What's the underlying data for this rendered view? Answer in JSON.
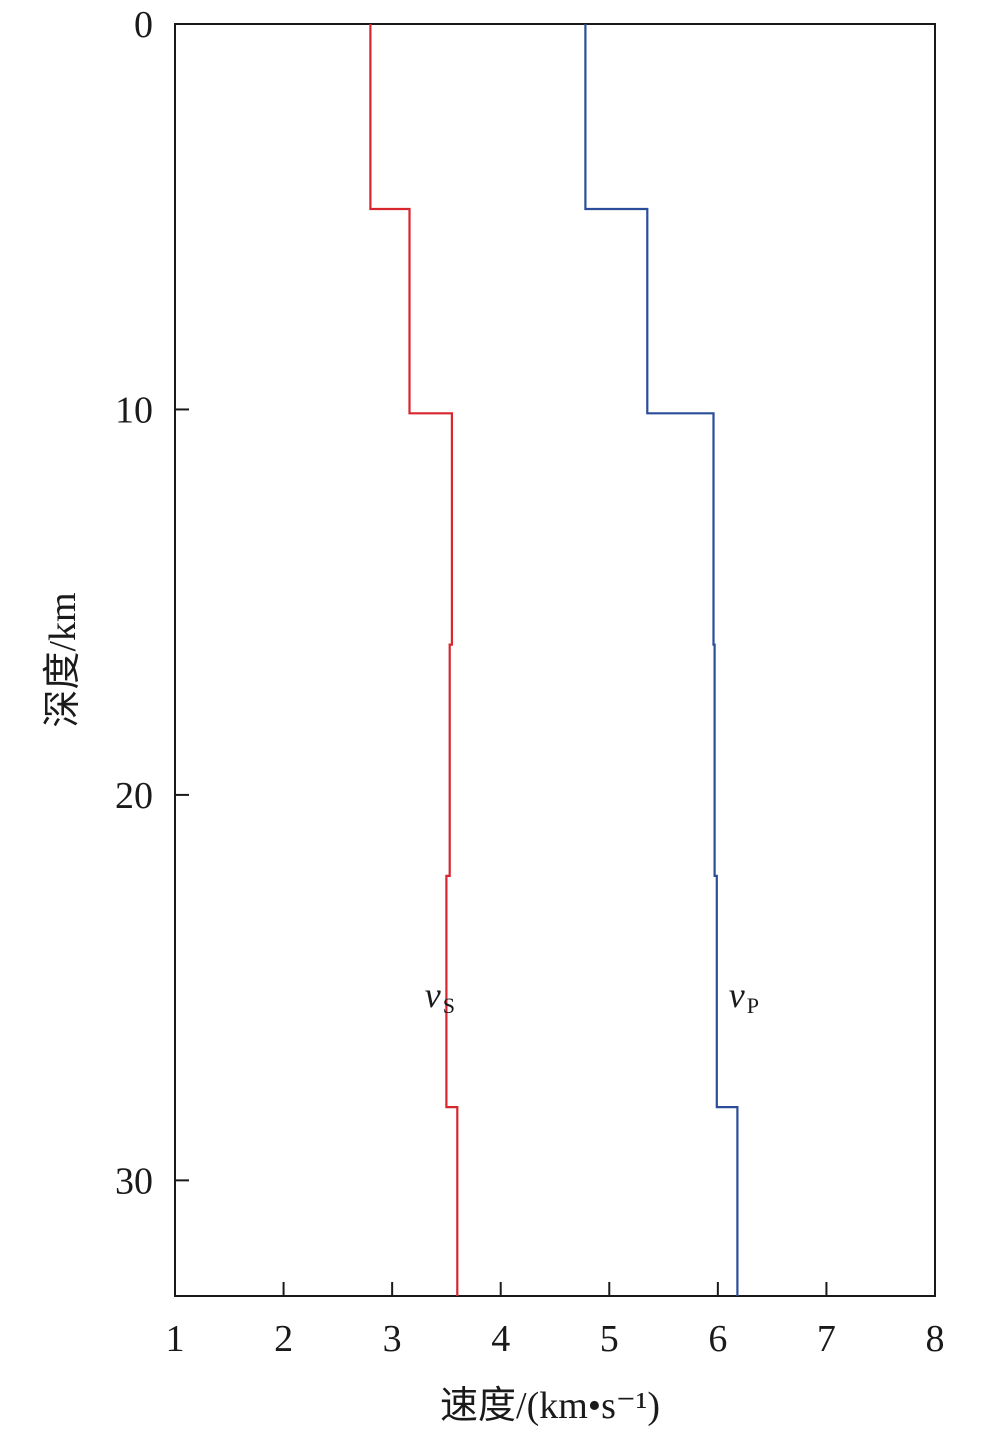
{
  "chart_data": {
    "type": "line",
    "orientation": "depth-profile",
    "xlabel": "速度/(km•s⁻¹)",
    "ylabel": "深度/km",
    "xlim": [
      1,
      8
    ],
    "ylim": [
      0,
      33
    ],
    "y_inverted": true,
    "xticks": [
      1,
      2,
      3,
      4,
      5,
      6,
      7,
      8
    ],
    "yticks": [
      0,
      10,
      20,
      30
    ],
    "grid": false,
    "series": [
      {
        "name": "vS",
        "label_main": "v",
        "label_sub": "S",
        "color": "#d8262e",
        "layers": [
          {
            "top": 0,
            "bottom": 4.8,
            "velocity": 2.8
          },
          {
            "top": 4.8,
            "bottom": 10.1,
            "velocity": 3.16
          },
          {
            "top": 10.1,
            "bottom": 16.1,
            "velocity": 3.55
          },
          {
            "top": 16.1,
            "bottom": 22.1,
            "velocity": 3.53
          },
          {
            "top": 22.1,
            "bottom": 28.1,
            "velocity": 3.5
          },
          {
            "top": 28.1,
            "bottom": 33,
            "velocity": 3.6
          }
        ],
        "label_at": {
          "velocity": 3.3,
          "depth": 25.5
        }
      },
      {
        "name": "vP",
        "label_main": "v",
        "label_sub": "P",
        "color": "#2a4d9a",
        "layers": [
          {
            "top": 0,
            "bottom": 4.8,
            "velocity": 4.78
          },
          {
            "top": 4.8,
            "bottom": 10.1,
            "velocity": 5.35
          },
          {
            "top": 10.1,
            "bottom": 16.1,
            "velocity": 5.96
          },
          {
            "top": 16.1,
            "bottom": 22.1,
            "velocity": 5.97
          },
          {
            "top": 22.1,
            "bottom": 28.1,
            "velocity": 5.99
          },
          {
            "top": 28.1,
            "bottom": 33,
            "velocity": 6.18
          }
        ],
        "label_at": {
          "velocity": 6.1,
          "depth": 25.5
        }
      }
    ]
  }
}
